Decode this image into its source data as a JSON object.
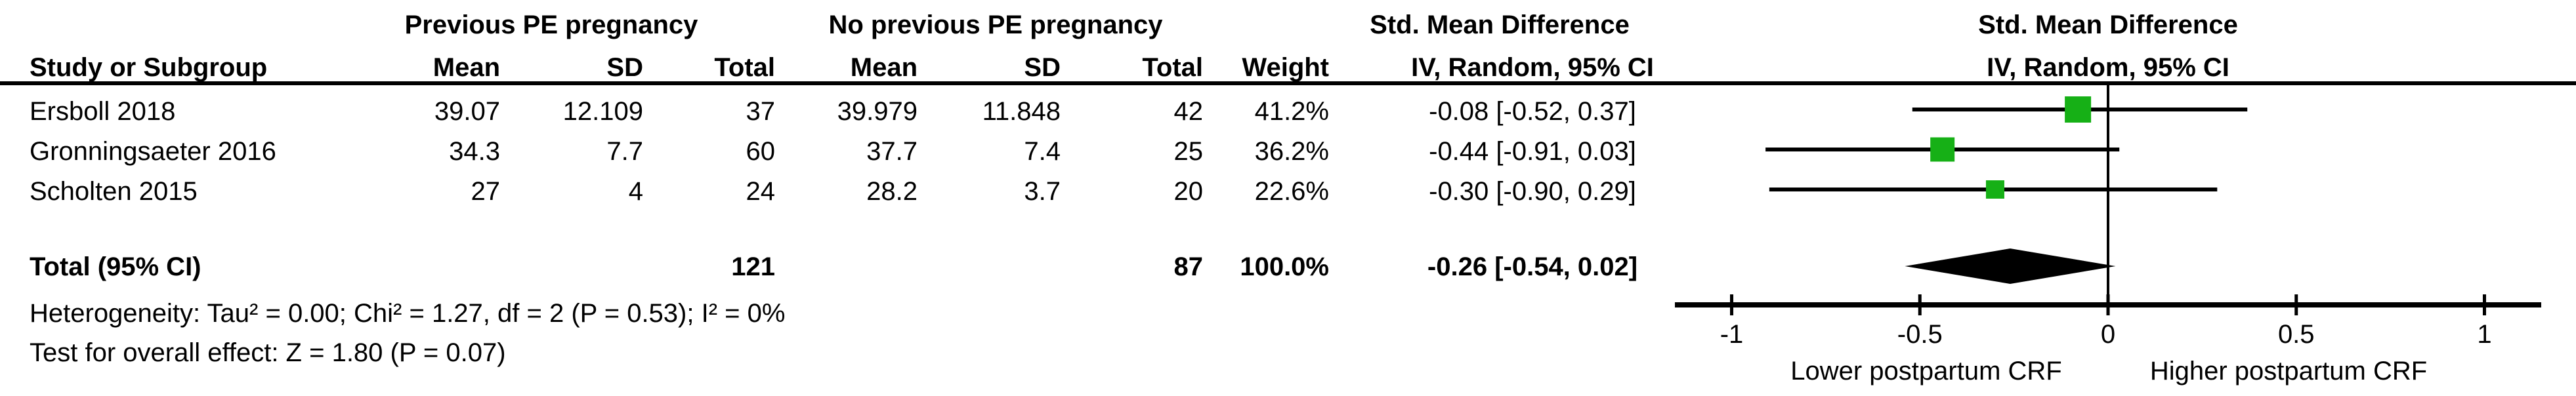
{
  "chart_data": {
    "type": "forest-plot",
    "software_style": "RevMan meta-analysis forest plot",
    "group_headers": {
      "group1": "Previous PE pregnancy",
      "group2": "No previous PE pregnancy",
      "smd_text_col": "Std. Mean Difference",
      "smd_plot_col": "Std. Mean Difference"
    },
    "column_headers": {
      "study": "Study or Subgroup",
      "mean1": "Mean",
      "sd1": "SD",
      "total1": "Total",
      "mean2": "Mean",
      "sd2": "SD",
      "total2": "Total",
      "weight": "Weight",
      "ci_method1": "IV, Random, 95% CI",
      "ci_method2": "IV, Random, 95% CI"
    },
    "studies": [
      {
        "name": "Ersboll 2018",
        "mean1": "39.07",
        "sd1": "12.109",
        "total1": "37",
        "mean2": "39.979",
        "sd2": "11.848",
        "total2": "42",
        "weight": "41.2%",
        "weight_pct": 41.2,
        "ci_text": "-0.08 [-0.52, 0.37]",
        "est": -0.08,
        "ci_lo": -0.52,
        "ci_hi": 0.37
      },
      {
        "name": "Gronningsaeter 2016",
        "mean1": "34.3",
        "sd1": "7.7",
        "total1": "60",
        "mean2": "37.7",
        "sd2": "7.4",
        "total2": "25",
        "weight": "36.2%",
        "weight_pct": 36.2,
        "ci_text": "-0.44 [-0.91, 0.03]",
        "est": -0.44,
        "ci_lo": -0.91,
        "ci_hi": 0.03
      },
      {
        "name": "Scholten 2015",
        "mean1": "27",
        "sd1": "4",
        "total1": "24",
        "mean2": "28.2",
        "sd2": "3.7",
        "total2": "20",
        "weight": "22.6%",
        "weight_pct": 22.6,
        "ci_text": "-0.30 [-0.90, 0.29]",
        "est": -0.3,
        "ci_lo": -0.9,
        "ci_hi": 0.29
      }
    ],
    "total": {
      "label": "Total (95% CI)",
      "total1": "121",
      "total2": "87",
      "weight": "100.0%",
      "ci_text": "-0.26 [-0.54, 0.02]",
      "est": -0.26,
      "ci_lo": -0.54,
      "ci_hi": 0.02
    },
    "footnotes": {
      "heterogeneity": "Heterogeneity: Tau² = 0.00; Chi² = 1.27, df = 2 (P = 0.53); I² = 0%",
      "overall_effect": "Test for overall effect: Z = 1.80 (P = 0.07)"
    },
    "axis": {
      "min": -1,
      "max": 1,
      "ticks": [
        -1,
        -0.5,
        0,
        0.5,
        1
      ],
      "tick_labels": [
        "-1",
        "-0.5",
        "0",
        "0.5",
        "1"
      ],
      "label_left": "Lower postpartum CRF",
      "label_right": "Higher postpartum CRF"
    },
    "colors": {
      "marker": "#16b016",
      "diamond": "#000000",
      "line": "#000000",
      "background": "#ffffff"
    }
  }
}
